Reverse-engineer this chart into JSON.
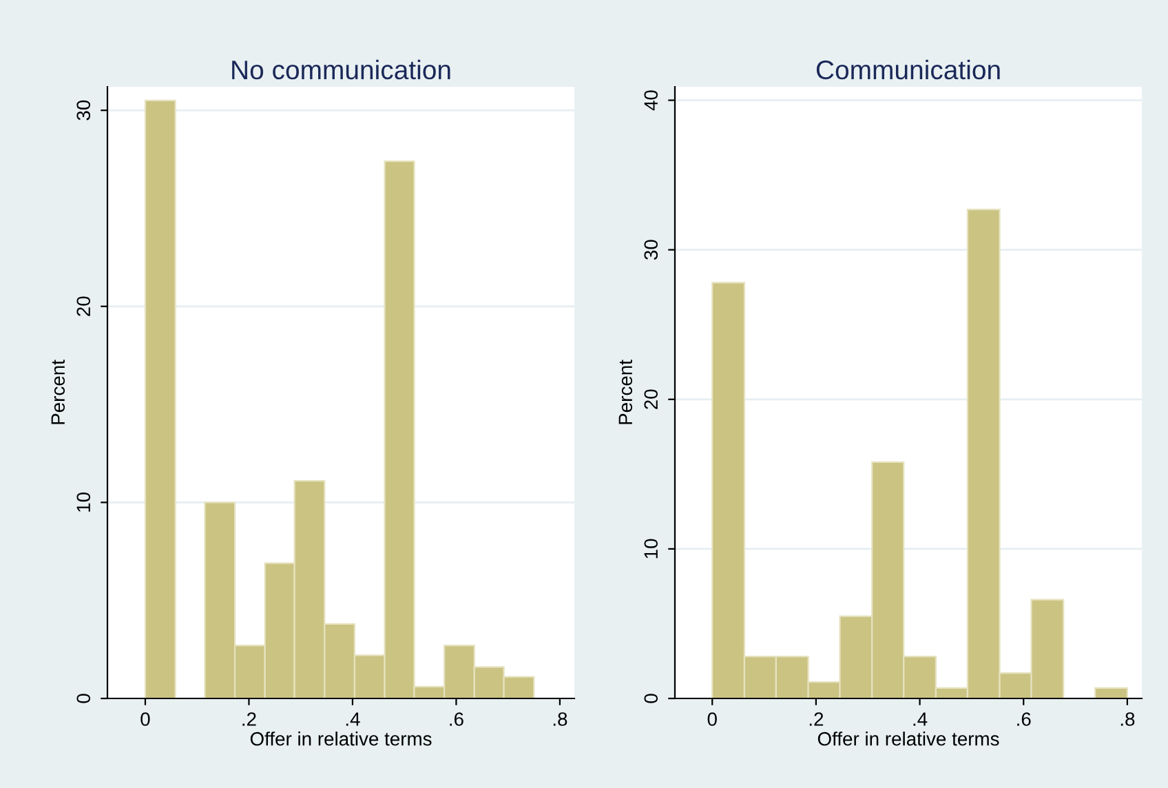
{
  "chart_data": [
    {
      "type": "histogram",
      "title": "No communication",
      "xlabel": "Offer in relative terms",
      "ylabel": "Percent",
      "color": "#cbc382",
      "bins": [
        0,
        0.058,
        0.115,
        0.173,
        0.231,
        0.288,
        0.346,
        0.404,
        0.462,
        0.519,
        0.577,
        0.635,
        0.692,
        0.75
      ],
      "values": [
        30.5,
        0,
        10.0,
        2.7,
        6.9,
        11.1,
        3.8,
        2.2,
        27.4,
        0.6,
        2.7,
        1.6,
        1.1
      ],
      "xlim": [
        -0.073,
        0.828
      ],
      "ylim": [
        0,
        31.2
      ],
      "xticks": [
        0,
        {
          "value": 0.2,
          "label": ".2"
        },
        {
          "value": 0.4,
          "label": ".4"
        },
        {
          "value": 0.6,
          "label": ".6"
        },
        {
          "value": 0.8,
          "label": ".8"
        }
      ],
      "yticks": [
        0,
        10,
        20,
        30
      ],
      "grid": "y",
      "legend": false
    },
    {
      "type": "histogram",
      "title": "Communication",
      "xlabel": "Offer in relative terms",
      "ylabel": "Percent",
      "color": "#cbc382",
      "bins": [
        0,
        0.062,
        0.123,
        0.185,
        0.246,
        0.308,
        0.369,
        0.431,
        0.492,
        0.554,
        0.615,
        0.677,
        0.738,
        0.8
      ],
      "values": [
        27.8,
        2.8,
        2.8,
        1.1,
        5.5,
        15.8,
        2.8,
        0.7,
        32.7,
        1.7,
        6.6,
        0,
        0.7
      ],
      "xlim": [
        -0.072,
        0.828
      ],
      "ylim": [
        0,
        40.9
      ],
      "xticks": [
        0,
        {
          "value": 0.2,
          "label": ".2"
        },
        {
          "value": 0.4,
          "label": ".4"
        },
        {
          "value": 0.6,
          "label": ".6"
        },
        {
          "value": 0.8,
          "label": ".8"
        }
      ],
      "yticks": [
        0,
        10,
        20,
        30,
        40
      ],
      "grid": "y",
      "legend": false
    }
  ]
}
